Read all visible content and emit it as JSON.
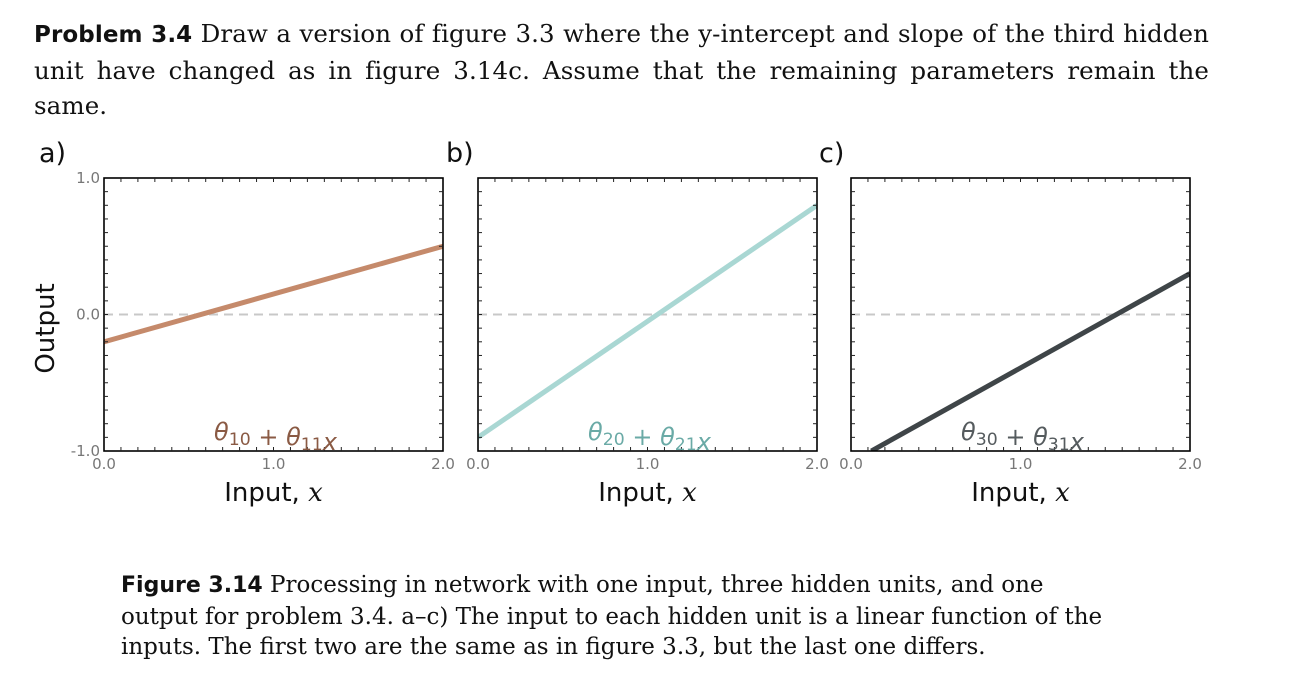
{
  "problem": {
    "label": "Problem 3.4",
    "text": "Draw a version of figure 3.3 where the y-intercept and slope of the third hidden unit have changed as in figure 3.14c. Assume that the remaining parameters remain the same."
  },
  "caption": {
    "label": "Figure 3.14",
    "text": "Processing in network with one input, three hidden units, and one output for problem 3.4. a–c) The input to each hidden unit is a linear function of the inputs. The first two are the same as in figure 3.3, but the last one differs."
  },
  "chart_data": [
    {
      "type": "line",
      "panel_label": "a)",
      "xlabel": "Input, x",
      "ylabel": "Output",
      "xlim": [
        0,
        2
      ],
      "ylim": [
        -1,
        1
      ],
      "xticks": [
        "0.0",
        "1.0",
        "2.0"
      ],
      "yticks": [
        "-1.0",
        "0.0",
        "1.0"
      ],
      "annotation": "θ10 + θ11x",
      "color": "#c58a6b",
      "annotation_color": "#8a5a44",
      "x": [
        0,
        2
      ],
      "y": [
        -0.2,
        0.5
      ]
    },
    {
      "type": "line",
      "panel_label": "b)",
      "xlabel": "Input, x",
      "xlim": [
        0,
        2
      ],
      "ylim": [
        -1,
        1
      ],
      "xticks": [
        "0.0",
        "1.0",
        "2.0"
      ],
      "annotation": "θ20 + θ21x",
      "color": "#a9d7d3",
      "annotation_color": "#6aaaa6",
      "x": [
        0,
        2
      ],
      "y": [
        -0.9,
        0.8
      ]
    },
    {
      "type": "line",
      "panel_label": "c)",
      "xlabel": "Input, x",
      "xlim": [
        0,
        2
      ],
      "ylim": [
        -1,
        1
      ],
      "xticks": [
        "0.0",
        "1.0",
        "2.0"
      ],
      "annotation": "θ30 + θ31x",
      "color": "#3f4548",
      "annotation_color": "#555b5e",
      "x": [
        0.12,
        2
      ],
      "y": [
        -1,
        0.3
      ]
    }
  ]
}
